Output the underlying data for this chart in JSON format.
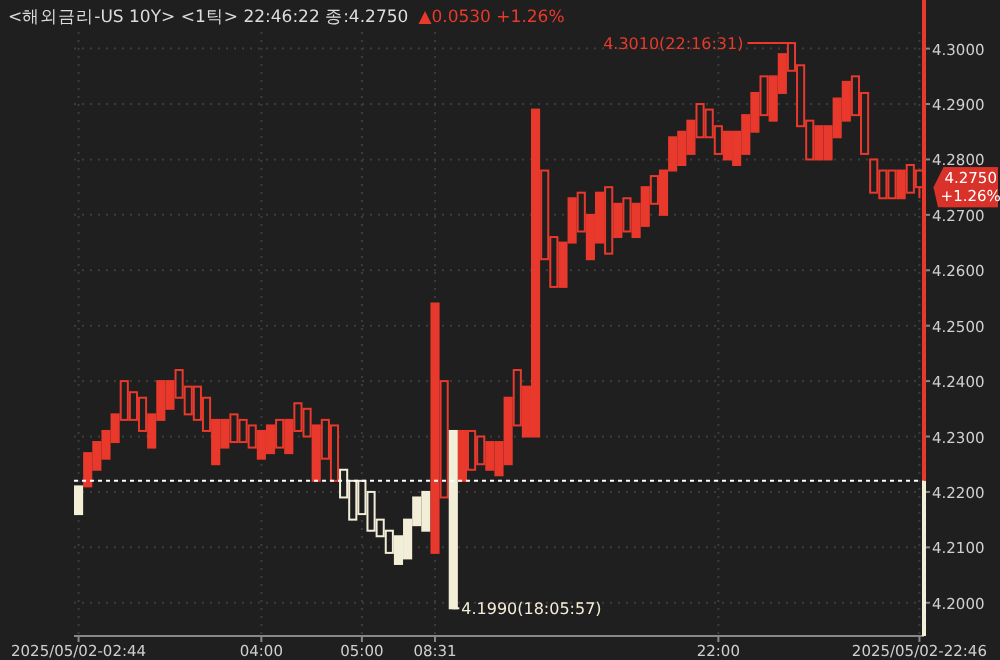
{
  "chart_data": {
    "type": "candlestick",
    "title": "<해외금리-US 10Y> <1틱> 22:46:22 종:4.2750",
    "subtitle": "▲0.0530 +1.26%",
    "categories": [
      "2025/05/02-02:44",
      null,
      null,
      null,
      null,
      null,
      null,
      null,
      null,
      null,
      null,
      null,
      null,
      null,
      null,
      null,
      null,
      null,
      null,
      null,
      "04:00",
      null,
      null,
      null,
      null,
      null,
      null,
      null,
      null,
      null,
      null,
      "05:00",
      null,
      null,
      null,
      null,
      null,
      null,
      null,
      "08:31",
      null,
      null,
      null,
      null,
      null,
      null,
      null,
      null,
      null,
      null,
      null,
      null,
      null,
      null,
      null,
      null,
      null,
      null,
      null,
      null,
      null,
      null,
      null,
      null,
      null,
      null,
      null,
      null,
      null,
      null,
      "22:00",
      null,
      null,
      null,
      null,
      null,
      null,
      null,
      null,
      null,
      null,
      null,
      null,
      null,
      null,
      null,
      null,
      null,
      null,
      null,
      null,
      null,
      "2025/05/02-22:46"
    ],
    "ohlc": [
      [
        4.216,
        4.221,
        4.216,
        4.221
      ],
      [
        4.221,
        4.227,
        4.221,
        4.227
      ],
      [
        4.224,
        4.229,
        4.224,
        4.229
      ],
      [
        4.226,
        4.231,
        4.226,
        4.231
      ],
      [
        4.229,
        4.234,
        4.229,
        4.234
      ],
      [
        4.24,
        4.24,
        4.233,
        4.233
      ],
      [
        4.238,
        4.238,
        4.233,
        4.233
      ],
      [
        4.237,
        4.237,
        4.231,
        4.231
      ],
      [
        4.228,
        4.234,
        4.228,
        4.234
      ],
      [
        4.233,
        4.24,
        4.233,
        4.24
      ],
      [
        4.235,
        4.24,
        4.235,
        4.24
      ],
      [
        4.242,
        4.242,
        4.237,
        4.237
      ],
      [
        4.239,
        4.239,
        4.234,
        4.234
      ],
      [
        4.239,
        4.239,
        4.233,
        4.233
      ],
      [
        4.237,
        4.237,
        4.231,
        4.231
      ],
      [
        4.225,
        4.233,
        4.225,
        4.233
      ],
      [
        4.228,
        4.233,
        4.228,
        4.233
      ],
      [
        4.234,
        4.234,
        4.229,
        4.229
      ],
      [
        4.233,
        4.233,
        4.229,
        4.229
      ],
      [
        4.232,
        4.232,
        4.228,
        4.228
      ],
      [
        4.226,
        4.231,
        4.226,
        4.231
      ],
      [
        4.227,
        4.232,
        4.227,
        4.232
      ],
      [
        4.233,
        4.233,
        4.228,
        4.228
      ],
      [
        4.227,
        4.233,
        4.227,
        4.233
      ],
      [
        4.236,
        4.236,
        4.231,
        4.231
      ],
      [
        4.235,
        4.235,
        4.23,
        4.23
      ],
      [
        4.222,
        4.232,
        4.222,
        4.232
      ],
      [
        4.233,
        4.233,
        4.226,
        4.226
      ],
      [
        4.232,
        4.232,
        4.222,
        4.222
      ],
      [
        4.224,
        4.224,
        4.219,
        4.219
      ],
      [
        4.222,
        4.222,
        4.215,
        4.215
      ],
      [
        4.222,
        4.222,
        4.216,
        4.216
      ],
      [
        4.22,
        4.22,
        4.213,
        4.213
      ],
      [
        4.215,
        4.215,
        4.212,
        4.212
      ],
      [
        4.213,
        4.213,
        4.209,
        4.209
      ],
      [
        4.207,
        4.212,
        4.207,
        4.212
      ],
      [
        4.208,
        4.215,
        4.208,
        4.215
      ],
      [
        4.214,
        4.219,
        4.214,
        4.219
      ],
      [
        4.213,
        4.22,
        4.213,
        4.22
      ],
      [
        4.209,
        4.254,
        4.209,
        4.254
      ],
      [
        4.24,
        4.24,
        4.219,
        4.219
      ],
      [
        4.199,
        4.231,
        4.199,
        4.231
      ],
      [
        4.222,
        4.231,
        4.222,
        4.231
      ],
      [
        4.231,
        4.231,
        4.224,
        4.224
      ],
      [
        4.23,
        4.23,
        4.225,
        4.225
      ],
      [
        4.224,
        4.229,
        4.224,
        4.229
      ],
      [
        4.223,
        4.229,
        4.223,
        4.229
      ],
      [
        4.225,
        4.237,
        4.225,
        4.237
      ],
      [
        4.242,
        4.242,
        4.232,
        4.232
      ],
      [
        4.23,
        4.239,
        4.23,
        4.239
      ],
      [
        4.23,
        4.289,
        4.23,
        4.289
      ],
      [
        4.278,
        4.278,
        4.262,
        4.262
      ],
      [
        4.266,
        4.266,
        4.257,
        4.257
      ],
      [
        4.257,
        4.265,
        4.257,
        4.265
      ],
      [
        4.265,
        4.273,
        4.265,
        4.273
      ],
      [
        4.274,
        4.274,
        4.267,
        4.267
      ],
      [
        4.262,
        4.27,
        4.262,
        4.27
      ],
      [
        4.265,
        4.274,
        4.265,
        4.274
      ],
      [
        4.275,
        4.275,
        4.263,
        4.263
      ],
      [
        4.266,
        4.272,
        4.266,
        4.272
      ],
      [
        4.273,
        4.273,
        4.267,
        4.267
      ],
      [
        4.266,
        4.272,
        4.266,
        4.272
      ],
      [
        4.268,
        4.275,
        4.268,
        4.275
      ],
      [
        4.277,
        4.277,
        4.272,
        4.272
      ],
      [
        4.27,
        4.278,
        4.27,
        4.278
      ],
      [
        4.278,
        4.284,
        4.278,
        4.284
      ],
      [
        4.279,
        4.285,
        4.279,
        4.285
      ],
      [
        4.281,
        4.287,
        4.281,
        4.287
      ],
      [
        4.29,
        4.29,
        4.284,
        4.284
      ],
      [
        4.289,
        4.289,
        4.284,
        4.284
      ],
      [
        4.286,
        4.286,
        4.281,
        4.281
      ],
      [
        4.28,
        4.285,
        4.28,
        4.285
      ],
      [
        4.279,
        4.285,
        4.279,
        4.285
      ],
      [
        4.281,
        4.288,
        4.281,
        4.288
      ],
      [
        4.285,
        4.292,
        4.285,
        4.292
      ],
      [
        4.295,
        4.295,
        4.288,
        4.288
      ],
      [
        4.287,
        4.295,
        4.287,
        4.295
      ],
      [
        4.292,
        4.299,
        4.292,
        4.299
      ],
      [
        4.301,
        4.301,
        4.296,
        4.296
      ],
      [
        4.297,
        4.297,
        4.286,
        4.286
      ],
      [
        4.287,
        4.287,
        4.28,
        4.28
      ],
      [
        4.28,
        4.286,
        4.28,
        4.286
      ],
      [
        4.28,
        4.286,
        4.28,
        4.286
      ],
      [
        4.284,
        4.291,
        4.284,
        4.291
      ],
      [
        4.287,
        4.294,
        4.287,
        4.294
      ],
      [
        4.295,
        4.295,
        4.288,
        4.288
      ],
      [
        4.292,
        4.292,
        4.281,
        4.281
      ],
      [
        4.28,
        4.28,
        4.274,
        4.274
      ],
      [
        4.278,
        4.278,
        4.273,
        4.273
      ],
      [
        4.278,
        4.278,
        4.273,
        4.273
      ],
      [
        4.273,
        4.278,
        4.273,
        4.278
      ],
      [
        4.279,
        4.279,
        4.274,
        4.274
      ],
      [
        4.278,
        4.278,
        4.273,
        4.275
      ]
    ],
    "colors": [
      "#f3eed8",
      "#e8392c",
      "#e8392c",
      "#e8392c",
      "#e8392c",
      "#e8392c",
      "#e8392c",
      "#e8392c",
      "#e8392c",
      "#e8392c",
      "#e8392c",
      "#e8392c",
      "#e8392c",
      "#e8392c",
      "#e8392c",
      "#e8392c",
      "#e8392c",
      "#e8392c",
      "#e8392c",
      "#e8392c",
      "#e8392c",
      "#e8392c",
      "#e8392c",
      "#e8392c",
      "#e8392c",
      "#e8392c",
      "#e8392c",
      "#e8392c",
      "#e8392c",
      "#f3eed8",
      "#f3eed8",
      "#f3eed8",
      "#f3eed8",
      "#f3eed8",
      "#f3eed8",
      "#f3eed8",
      "#f3eed8",
      "#f3eed8",
      "#f3eed8",
      "#e8392c",
      "#e8392c",
      "#f3eed8",
      "#e8392c",
      "#e8392c",
      "#e8392c",
      "#e8392c",
      "#e8392c",
      "#e8392c",
      "#e8392c",
      "#e8392c",
      "#e8392c",
      "#e8392c",
      "#e8392c",
      "#e8392c",
      "#e8392c",
      "#e8392c",
      "#e8392c",
      "#e8392c",
      "#e8392c",
      "#e8392c",
      "#e8392c",
      "#e8392c",
      "#e8392c",
      "#e8392c",
      "#e8392c",
      "#e8392c",
      "#e8392c",
      "#e8392c",
      "#e8392c",
      "#e8392c",
      "#e8392c",
      "#e8392c",
      "#e8392c",
      "#e8392c",
      "#e8392c",
      "#e8392c",
      "#e8392c",
      "#e8392c",
      "#e8392c",
      "#e8392c",
      "#e8392c",
      "#e8392c",
      "#e8392c",
      "#e8392c",
      "#e8392c",
      "#e8392c",
      "#e8392c",
      "#e8392c",
      "#e8392c",
      "#e8392c",
      "#e8392c",
      "#e8392c",
      "#e8392c"
    ],
    "ylim": [
      4.194,
      4.303
    ],
    "yticks": [
      {
        "value": 4.2,
        "label": "4.2000"
      },
      {
        "value": 4.21,
        "label": "4.2100"
      },
      {
        "value": 4.22,
        "label": "4.2200"
      },
      {
        "value": 4.23,
        "label": "4.2300"
      },
      {
        "value": 4.24,
        "label": "4.2400"
      },
      {
        "value": 4.25,
        "label": "4.2500"
      },
      {
        "value": 4.26,
        "label": "4.2600"
      },
      {
        "value": 4.27,
        "label": "4.2700"
      },
      {
        "value": 4.28,
        "label": "4.2800"
      },
      {
        "value": 4.29,
        "label": "4.2900"
      },
      {
        "value": 4.3,
        "label": "4.3000"
      }
    ],
    "ref_lines": [
      {
        "axis": "y",
        "value": 4.222,
        "color": "#ffffff",
        "line_style": "dashed"
      }
    ],
    "annotations": [
      "4.3010(22:16:31)",
      "4.1990(18:05:57)",
      {
        "text": "4.2750\n+1.26%",
        "x": "2025/05/02-22:46",
        "y": 4.275
      }
    ],
    "grid": true
  }
}
